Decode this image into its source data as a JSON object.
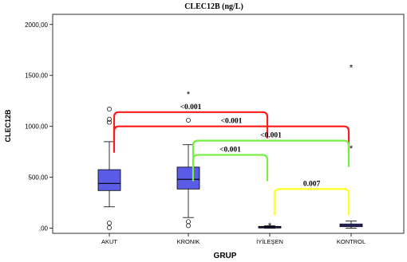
{
  "chart_data": {
    "type": "box",
    "title": "CLEC12B (ng/L)",
    "xlabel": "GRUP",
    "ylabel": "CLEC12B",
    "ylim": [
      -50,
      2100
    ],
    "y_ticks": [
      0,
      500,
      1000,
      1500,
      2000
    ],
    "y_tick_labels": [
      ",00",
      "500,00",
      "1000,00",
      "1500,00",
      "2000,00"
    ],
    "grid": false,
    "legend": "none",
    "categories": [
      "AKUT",
      "KRONIK",
      "İYİLEŞEN",
      "KONTROL"
    ],
    "box_color": "#5a5ce8",
    "boxes": [
      {
        "q1": 370,
        "median": 440,
        "q3": 575,
        "whisker_low": 210,
        "whisker_high": 850,
        "outliers": [
          1170,
          1070,
          1040,
          50,
          5
        ],
        "extremes": []
      },
      {
        "q1": 385,
        "median": 480,
        "q3": 600,
        "whisker_low": 105,
        "whisker_high": 820,
        "outliers": [
          1060,
          65,
          25
        ],
        "extremes": [
          1320
        ]
      },
      {
        "q1": 5,
        "median": 12,
        "q3": 18,
        "whisker_low": 0,
        "whisker_high": 24,
        "outliers": [],
        "extremes": [
          30
        ]
      },
      {
        "q1": 15,
        "median": 28,
        "q3": 42,
        "whisker_low": 0,
        "whisker_high": 70,
        "outliers": [],
        "extremes": [
          1580,
          785
        ]
      }
    ],
    "annotations": [
      {
        "label": "<0.001",
        "from": 0,
        "to": 2,
        "level": 1140,
        "color": "#ff1a1a"
      },
      {
        "label": "<0.001",
        "from": 0,
        "to": 3,
        "level": 1000,
        "color": "#ff1a1a"
      },
      {
        "label": "<0.001",
        "from": 1,
        "to": 3,
        "level": 860,
        "color": "#77ee44"
      },
      {
        "label": "<0.001",
        "from": 1,
        "to": 2,
        "level": 720,
        "color": "#77ee44"
      },
      {
        "label": "0.007",
        "from": 2,
        "to": 3,
        "level": 385,
        "color": "#ffff22"
      }
    ]
  }
}
